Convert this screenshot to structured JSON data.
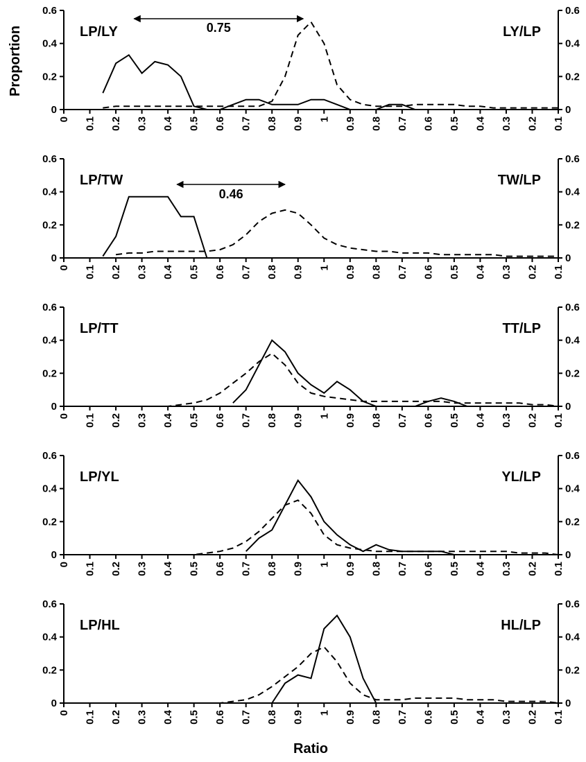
{
  "figure": {
    "ylabel": "Proportion",
    "xlabel": "Ratio"
  },
  "chart_data": [
    {
      "type": "line",
      "left_label": "LP/LY",
      "right_label": "LY/LP",
      "annotation": "0.75",
      "x": [
        0,
        0.05,
        0.1,
        0.15,
        0.2,
        0.25,
        0.3,
        0.35,
        0.4,
        0.45,
        0.5,
        0.55,
        0.6,
        0.65,
        0.7,
        0.75,
        0.8,
        0.85,
        0.9,
        0.95,
        1,
        1.05,
        1.1,
        1.15,
        1.2,
        1.25,
        1.3,
        1.35,
        1.4,
        1.45,
        1.5,
        1.55,
        1.6,
        1.65,
        1.7,
        1.75,
        1.8,
        1.85,
        1.9
      ],
      "series": [
        {
          "color": "#000000",
          "dash": "solid",
          "values": [
            null,
            null,
            null,
            0.1,
            0.28,
            0.33,
            0.22,
            0.29,
            0.27,
            0.2,
            0.02,
            0,
            0,
            0.03,
            0.06,
            0.06,
            0.03,
            0.03,
            0.03,
            0.06,
            0.06,
            0.03,
            0,
            0,
            0,
            0.03,
            0.03,
            0,
            null,
            null,
            null,
            null,
            null,
            null,
            null,
            null,
            null,
            null,
            null
          ]
        },
        {
          "color": "#000000",
          "dash": "dashed",
          "values": [
            null,
            null,
            null,
            0.01,
            0.02,
            0.02,
            0.02,
            0.02,
            0.02,
            0.02,
            0.02,
            0.02,
            0.02,
            0.02,
            0.02,
            0.02,
            0.05,
            0.2,
            0.45,
            0.53,
            0.4,
            0.15,
            0.06,
            0.03,
            0.02,
            0.02,
            0.02,
            0.03,
            0.03,
            0.03,
            0.03,
            0.02,
            0.02,
            0.01,
            0.01,
            0.01,
            0.01,
            0.01,
            0.01
          ]
        }
      ],
      "xlim": [
        0,
        1.9
      ],
      "xticks": [
        0,
        0.1,
        0.2,
        0.3,
        0.4,
        0.5,
        0.6,
        0.7,
        0.8,
        0.9,
        1,
        {
          "value": 1.1,
          "label": "0.9"
        },
        {
          "value": 1.2,
          "label": "0.8"
        },
        {
          "value": 1.3,
          "label": "0.7"
        },
        {
          "value": 1.4,
          "label": "0.6"
        },
        {
          "value": 1.5,
          "label": "0.5"
        },
        {
          "value": 1.6,
          "label": "0.4"
        },
        {
          "value": 1.7,
          "label": "0.3"
        },
        {
          "value": 1.8,
          "label": "0.2"
        },
        {
          "value": 1.9,
          "label": "0.1"
        }
      ],
      "ylim": [
        0,
        0.6
      ],
      "yticks": [
        0,
        0.2,
        0.4,
        0.6
      ],
      "y2lim": [
        0,
        0.6
      ],
      "y2ticks": [
        0,
        0.2,
        0.4,
        0.6
      ]
    },
    {
      "type": "line",
      "left_label": "LP/TW",
      "right_label": "TW/LP",
      "annotation": "0.46",
      "x": [
        0,
        0.05,
        0.1,
        0.15,
        0.2,
        0.25,
        0.3,
        0.35,
        0.4,
        0.45,
        0.5,
        0.55,
        0.6,
        0.65,
        0.7,
        0.75,
        0.8,
        0.85,
        0.9,
        0.95,
        1,
        1.05,
        1.1,
        1.15,
        1.2,
        1.25,
        1.3,
        1.35,
        1.4,
        1.45,
        1.5,
        1.55,
        1.6,
        1.65,
        1.7,
        1.75,
        1.8,
        1.85,
        1.9
      ],
      "series": [
        {
          "color": "#000000",
          "dash": "solid",
          "values": [
            null,
            null,
            null,
            0.01,
            0.13,
            0.37,
            0.37,
            0.37,
            0.37,
            0.25,
            0.25,
            0,
            null,
            null,
            null,
            null,
            null,
            null,
            null,
            null,
            null,
            null,
            null,
            null,
            null,
            null,
            null,
            null,
            null,
            null,
            null,
            null,
            null,
            null,
            null,
            null,
            null,
            null,
            null
          ]
        },
        {
          "color": "#000000",
          "dash": "dashed",
          "values": [
            null,
            null,
            null,
            null,
            0.02,
            0.03,
            0.03,
            0.04,
            0.04,
            0.04,
            0.04,
            0.04,
            0.05,
            0.08,
            0.14,
            0.22,
            0.27,
            0.29,
            0.27,
            0.2,
            0.12,
            0.08,
            0.06,
            0.05,
            0.04,
            0.04,
            0.03,
            0.03,
            0.03,
            0.02,
            0.02,
            0.02,
            0.02,
            0.02,
            0.01,
            0.01,
            0.01,
            0.01,
            0.01
          ]
        }
      ],
      "xlim": [
        0,
        1.9
      ],
      "xticks": [
        0,
        0.1,
        0.2,
        0.3,
        0.4,
        0.5,
        0.6,
        0.7,
        0.8,
        0.9,
        1,
        {
          "value": 1.1,
          "label": "0.9"
        },
        {
          "value": 1.2,
          "label": "0.8"
        },
        {
          "value": 1.3,
          "label": "0.7"
        },
        {
          "value": 1.4,
          "label": "0.6"
        },
        {
          "value": 1.5,
          "label": "0.5"
        },
        {
          "value": 1.6,
          "label": "0.4"
        },
        {
          "value": 1.7,
          "label": "0.3"
        },
        {
          "value": 1.8,
          "label": "0.2"
        },
        {
          "value": 1.9,
          "label": "0.1"
        }
      ],
      "ylim": [
        0,
        0.6
      ],
      "yticks": [
        0,
        0.2,
        0.4,
        0.6
      ],
      "y2lim": [
        0,
        0.6
      ],
      "y2ticks": [
        0,
        0.2,
        0.4,
        0.6
      ]
    },
    {
      "type": "line",
      "left_label": "LP/TT",
      "right_label": "TT/LP",
      "x": [
        0,
        0.05,
        0.1,
        0.15,
        0.2,
        0.25,
        0.3,
        0.35,
        0.4,
        0.45,
        0.5,
        0.55,
        0.6,
        0.65,
        0.7,
        0.75,
        0.8,
        0.85,
        0.9,
        0.95,
        1,
        1.05,
        1.1,
        1.15,
        1.2,
        1.25,
        1.3,
        1.35,
        1.4,
        1.45,
        1.5,
        1.55,
        1.6,
        1.65,
        1.7,
        1.75,
        1.8,
        1.85,
        1.9
      ],
      "series": [
        {
          "color": "#000000",
          "dash": "solid",
          "values": [
            null,
            null,
            null,
            null,
            null,
            null,
            null,
            null,
            null,
            null,
            null,
            null,
            null,
            0.02,
            0.1,
            0.25,
            0.4,
            0.33,
            0.2,
            0.13,
            0.08,
            0.15,
            0.1,
            0.03,
            0,
            0,
            0,
            0,
            0.03,
            0.05,
            0.03,
            0,
            null,
            null,
            null,
            null,
            null,
            null,
            null
          ]
        },
        {
          "color": "#000000",
          "dash": "dashed",
          "values": [
            null,
            null,
            null,
            0,
            0,
            0,
            0,
            0,
            0,
            0.01,
            0.02,
            0.04,
            0.08,
            0.14,
            0.2,
            0.27,
            0.32,
            0.25,
            0.14,
            0.08,
            0.06,
            0.05,
            0.04,
            0.03,
            0.03,
            0.03,
            0.03,
            0.03,
            0.03,
            0.03,
            0.02,
            0.02,
            0.02,
            0.02,
            0.02,
            0.02,
            0.01,
            0.01,
            0
          ]
        }
      ],
      "xlim": [
        0,
        1.9
      ],
      "xticks": [
        0,
        0.1,
        0.2,
        0.3,
        0.4,
        0.5,
        0.6,
        0.7,
        0.8,
        0.9,
        1,
        {
          "value": 1.1,
          "label": "0.9"
        },
        {
          "value": 1.2,
          "label": "0.8"
        },
        {
          "value": 1.3,
          "label": "0.7"
        },
        {
          "value": 1.4,
          "label": "0.6"
        },
        {
          "value": 1.5,
          "label": "0.5"
        },
        {
          "value": 1.6,
          "label": "0.4"
        },
        {
          "value": 1.7,
          "label": "0.3"
        },
        {
          "value": 1.8,
          "label": "0.2"
        },
        {
          "value": 1.9,
          "label": "0.1"
        }
      ],
      "ylim": [
        0,
        0.6
      ],
      "yticks": [
        0,
        0.2,
        0.4,
        0.6
      ],
      "y2lim": [
        0,
        0.6
      ],
      "y2ticks": [
        0,
        0.2,
        0.4,
        0.6
      ]
    },
    {
      "type": "line",
      "left_label": "LP/YL",
      "right_label": "YL/LP",
      "x": [
        0,
        0.05,
        0.1,
        0.15,
        0.2,
        0.25,
        0.3,
        0.35,
        0.4,
        0.45,
        0.5,
        0.55,
        0.6,
        0.65,
        0.7,
        0.75,
        0.8,
        0.85,
        0.9,
        0.95,
        1,
        1.05,
        1.1,
        1.15,
        1.2,
        1.25,
        1.3,
        1.35,
        1.4,
        1.45,
        1.5,
        1.55,
        1.6,
        1.65,
        1.7,
        1.75,
        1.8,
        1.85,
        1.9
      ],
      "series": [
        {
          "color": "#000000",
          "dash": "solid",
          "values": [
            null,
            null,
            null,
            null,
            null,
            null,
            null,
            null,
            null,
            null,
            null,
            null,
            null,
            null,
            0.02,
            0.1,
            0.15,
            0.3,
            0.45,
            0.35,
            0.2,
            0.12,
            0.06,
            0.02,
            0.06,
            0.03,
            0.02,
            0.02,
            0.02,
            0.02,
            0,
            null,
            null,
            null,
            null,
            null,
            null,
            null,
            null
          ]
        },
        {
          "color": "#000000",
          "dash": "dashed",
          "values": [
            null,
            null,
            null,
            0,
            0,
            0,
            0,
            0,
            0,
            0,
            0,
            0.01,
            0.02,
            0.04,
            0.08,
            0.14,
            0.22,
            0.3,
            0.33,
            0.25,
            0.12,
            0.06,
            0.04,
            0.03,
            0.02,
            0.02,
            0.02,
            0.02,
            0.02,
            0.02,
            0.02,
            0.02,
            0.02,
            0.02,
            0.02,
            0.01,
            0.01,
            0.01,
            0
          ]
        }
      ],
      "xlim": [
        0,
        1.9
      ],
      "xticks": [
        0,
        0.1,
        0.2,
        0.3,
        0.4,
        0.5,
        0.6,
        0.7,
        0.8,
        0.9,
        1,
        {
          "value": 1.1,
          "label": "0.9"
        },
        {
          "value": 1.2,
          "label": "0.8"
        },
        {
          "value": 1.3,
          "label": "0.7"
        },
        {
          "value": 1.4,
          "label": "0.6"
        },
        {
          "value": 1.5,
          "label": "0.5"
        },
        {
          "value": 1.6,
          "label": "0.4"
        },
        {
          "value": 1.7,
          "label": "0.3"
        },
        {
          "value": 1.8,
          "label": "0.2"
        },
        {
          "value": 1.9,
          "label": "0.1"
        }
      ],
      "ylim": [
        0,
        0.6
      ],
      "yticks": [
        0,
        0.2,
        0.4,
        0.6
      ],
      "y2lim": [
        0,
        0.6
      ],
      "y2ticks": [
        0,
        0.2,
        0.4,
        0.6
      ]
    },
    {
      "type": "line",
      "left_label": "LP/HL",
      "right_label": "HL/LP",
      "x": [
        0,
        0.05,
        0.1,
        0.15,
        0.2,
        0.25,
        0.3,
        0.35,
        0.4,
        0.45,
        0.5,
        0.55,
        0.6,
        0.65,
        0.7,
        0.75,
        0.8,
        0.85,
        0.9,
        0.95,
        1,
        1.05,
        1.1,
        1.15,
        1.2,
        1.25,
        1.3,
        1.35,
        1.4,
        1.45,
        1.5,
        1.55,
        1.6,
        1.65,
        1.7,
        1.75,
        1.8,
        1.85,
        1.9
      ],
      "series": [
        {
          "color": "#000000",
          "dash": "solid",
          "values": [
            null,
            null,
            null,
            null,
            null,
            null,
            null,
            null,
            null,
            null,
            null,
            null,
            null,
            null,
            null,
            null,
            0,
            0.12,
            0.17,
            0.15,
            0.45,
            0.53,
            0.4,
            0.15,
            0,
            null,
            null,
            null,
            null,
            null,
            null,
            null,
            null,
            null,
            null,
            null,
            null,
            null,
            null
          ]
        },
        {
          "color": "#000000",
          "dash": "dashed",
          "values": [
            null,
            null,
            null,
            0,
            0,
            0,
            0,
            0,
            0,
            0,
            0,
            0,
            0,
            0.01,
            0.02,
            0.05,
            0.1,
            0.16,
            0.22,
            0.3,
            0.34,
            0.25,
            0.12,
            0.05,
            0.02,
            0.02,
            0.02,
            0.03,
            0.03,
            0.03,
            0.03,
            0.02,
            0.02,
            0.02,
            0.01,
            0.01,
            0.01,
            0.01,
            0
          ]
        }
      ],
      "xlim": [
        0,
        1.9
      ],
      "xticks": [
        0,
        0.1,
        0.2,
        0.3,
        0.4,
        0.5,
        0.6,
        0.7,
        0.8,
        0.9,
        1,
        {
          "value": 1.1,
          "label": "0.9"
        },
        {
          "value": 1.2,
          "label": "0.8"
        },
        {
          "value": 1.3,
          "label": "0.7"
        },
        {
          "value": 1.4,
          "label": "0.6"
        },
        {
          "value": 1.5,
          "label": "0.5"
        },
        {
          "value": 1.6,
          "label": "0.4"
        },
        {
          "value": 1.7,
          "label": "0.3"
        },
        {
          "value": 1.8,
          "label": "0.2"
        },
        {
          "value": 1.9,
          "label": "0.1"
        }
      ],
      "ylim": [
        0,
        0.6
      ],
      "yticks": [
        0,
        0.2,
        0.4,
        0.6
      ],
      "y2lim": [
        0,
        0.6
      ],
      "y2ticks": [
        0,
        0.2,
        0.4,
        0.6
      ]
    }
  ]
}
